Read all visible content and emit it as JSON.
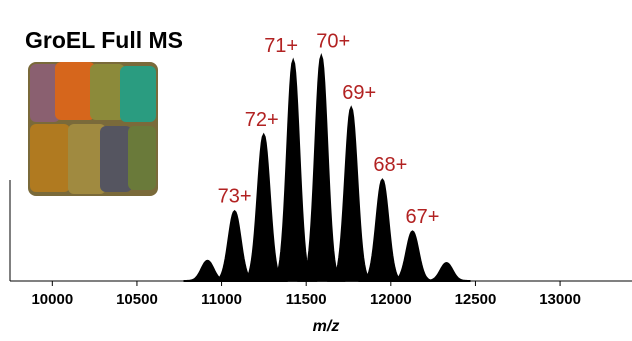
{
  "chart_data": {
    "type": "spectrum",
    "title": "GroEL Full MS",
    "x_label": "m/z",
    "x": [
      10917,
      11077,
      11249,
      11423,
      11589,
      11766,
      11950,
      12128,
      12329
    ],
    "values": [
      9,
      31,
      65,
      98,
      100,
      77,
      45,
      22,
      8
    ],
    "labels": [
      null,
      "73+",
      "72+",
      "71+",
      "70+",
      "69+",
      "68+",
      "67+",
      null
    ],
    "color": "#000000",
    "label_color": "#b22222",
    "xlim": [
      9750,
      13425
    ],
    "xticks": [
      10000,
      10500,
      11000,
      11500,
      12000,
      12500,
      13000
    ],
    "ylim": [
      0,
      125
    ]
  }
}
